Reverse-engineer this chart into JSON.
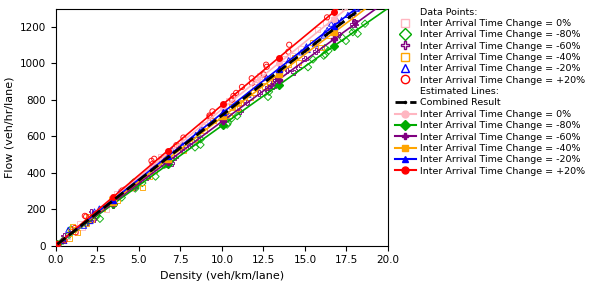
{
  "xlabel": "Density (veh/km/lane)",
  "ylabel": "Flow (veh/hr/lane)",
  "xlim": [
    0.0,
    20.0
  ],
  "ylim": [
    0,
    1300
  ],
  "xticks": [
    0.0,
    2.5,
    5.0,
    7.5,
    10.0,
    12.5,
    15.0,
    17.5,
    20.0
  ],
  "yticks": [
    0,
    200,
    400,
    600,
    800,
    1000,
    1200
  ],
  "series": [
    {
      "label": "Inter Arrival Time Change = 0%",
      "change_pct": 0,
      "scatter_color": "#ffb6c1",
      "line_color": "#ffb6c1",
      "scatter_marker": "s",
      "line_marker": "o"
    },
    {
      "label": "Inter Arrival Time Change = -80%",
      "change_pct": -80,
      "scatter_color": "#00aa00",
      "line_color": "#00aa00",
      "scatter_marker": "D",
      "line_marker": "D"
    },
    {
      "label": "Inter Arrival Time Change = -60%",
      "change_pct": -60,
      "scatter_color": "#800080",
      "line_color": "#800080",
      "scatter_marker": "P",
      "line_marker": "P"
    },
    {
      "label": "Inter Arrival Time Change = -40%",
      "change_pct": -40,
      "scatter_color": "#FFA500",
      "line_color": "#FFA500",
      "scatter_marker": "s",
      "line_marker": "s"
    },
    {
      "label": "Inter Arrival Time Change = -20%",
      "change_pct": -20,
      "scatter_color": "#0000FF",
      "line_color": "#0000FF",
      "scatter_marker": "^",
      "line_marker": "^"
    },
    {
      "label": "Inter Arrival Time Change = +20%",
      "change_pct": 20,
      "scatter_color": "#FF0000",
      "line_color": "#FF0000",
      "scatter_marker": "o",
      "line_marker": "o"
    }
  ],
  "legend_title_data": "Data Points:",
  "legend_title_lines": "Estimated Lines:"
}
